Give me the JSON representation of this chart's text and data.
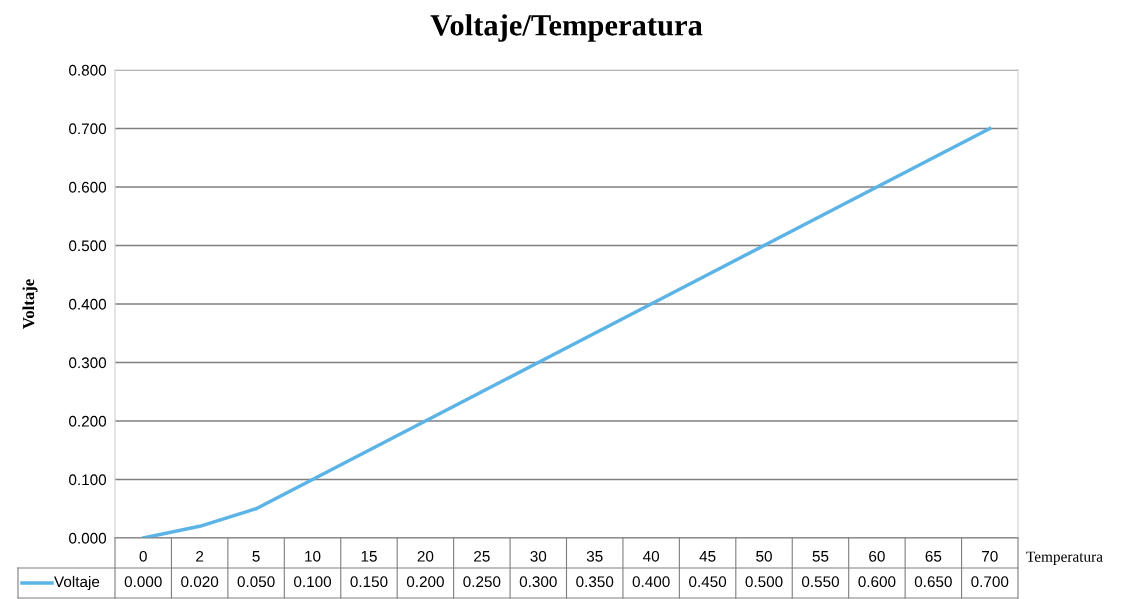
{
  "chart_data": {
    "type": "line",
    "title": "Voltaje/Temperatura",
    "xlabel": "Temperatura",
    "ylabel": "Voltaje",
    "categories": [
      "0",
      "2",
      "5",
      "10",
      "15",
      "20",
      "25",
      "30",
      "35",
      "40",
      "45",
      "50",
      "55",
      "60",
      "65",
      "70"
    ],
    "series": [
      {
        "name": "Voltaje",
        "color": "#5bb4e5",
        "values": [
          0.0,
          0.02,
          0.05,
          0.1,
          0.15,
          0.2,
          0.25,
          0.3,
          0.35,
          0.4,
          0.45,
          0.5,
          0.55,
          0.6,
          0.65,
          0.7
        ]
      }
    ],
    "ylim": [
      0,
      0.8
    ],
    "yticks": [
      {
        "value": 0,
        "label": "0.000"
      },
      {
        "value": 0.1,
        "label": "0.100"
      },
      {
        "value": 0.2,
        "label": "0.200"
      },
      {
        "value": 0.3,
        "label": "0.300"
      },
      {
        "value": 0.4,
        "label": "0.400"
      },
      {
        "value": 0.5,
        "label": "0.500"
      },
      {
        "value": 0.6,
        "label": "0.600"
      },
      {
        "value": 0.7,
        "label": "0.700"
      },
      {
        "value": 0.8,
        "label": "0.800"
      }
    ],
    "value_labels": [
      "0.000",
      "0.020",
      "0.050",
      "0.100",
      "0.150",
      "0.200",
      "0.250",
      "0.300",
      "0.350",
      "0.400",
      "0.450",
      "0.500",
      "0.550",
      "0.600",
      "0.650",
      "0.700"
    ],
    "grid": "y",
    "legend": "bottom",
    "marker": "none",
    "line_style": "solid"
  }
}
